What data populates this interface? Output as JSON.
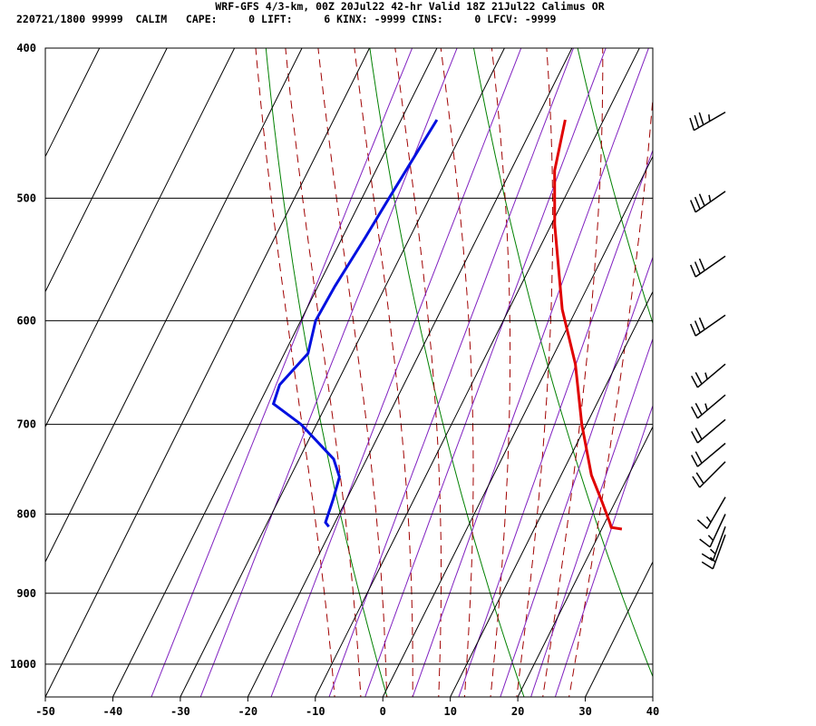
{
  "header": {
    "title": "WRF-GFS 4/3-km, 00Z 20Jul22 42-hr Valid 18Z 21Jul22 Calimus OR",
    "subtitle": "220721/1800 99999  CALIM   CAPE:     0 LIFT:     6 KINX: -9999 CINS:     0 LFCV: -9999"
  },
  "chart_data": {
    "type": "line",
    "title": "WRF-GFS 4/3-km, 00Z 20Jul22 42-hr Valid 18Z 21Jul22 Calimus OR",
    "xlabel": "",
    "ylabel": "",
    "xlim": [
      -50,
      40
    ],
    "ylim": [
      1050,
      400
    ],
    "y_scale": "log-pressure",
    "skew": "skew-T",
    "grid": true,
    "x_ticks": [
      "-50",
      "-40",
      "-30",
      "-20",
      "-10",
      "0",
      "10",
      "20",
      "30",
      "40"
    ],
    "y_ticks": [
      "400",
      "500",
      "600",
      "700",
      "800",
      "900",
      "1000"
    ],
    "x_tick_values": [
      -50,
      -40,
      -30,
      -20,
      -10,
      0,
      10,
      20,
      30,
      40
    ],
    "y_tick_values": [
      400,
      500,
      600,
      700,
      800,
      900,
      1000
    ],
    "colors": {
      "temperature": "#e00000",
      "dewpoint": "#0010e0",
      "dry_adiabat": "#008000",
      "moist_adiabat": "#a00000",
      "mixing_ratio": "#8020c0",
      "grid": "#000000"
    },
    "series": [
      {
        "role": "temperature",
        "color": "#e00000",
        "points": [
          [
            -15.7,
            445
          ],
          [
            -13.5,
            480
          ],
          [
            -9.5,
            520
          ],
          [
            -2.1,
            590
          ],
          [
            3.9,
            640
          ],
          [
            9.3,
            700
          ],
          [
            14.5,
            755
          ],
          [
            18.1,
            786
          ],
          [
            20.7,
            810
          ],
          [
            21.3,
            816
          ],
          [
            23.0,
            818
          ]
        ]
      },
      {
        "role": "dewpoint",
        "color": "#0010e0",
        "points": [
          [
            -34.7,
            445
          ],
          [
            -36.0,
            500
          ],
          [
            -36.6,
            530
          ],
          [
            -37.5,
            570
          ],
          [
            -37.8,
            600
          ],
          [
            -36.5,
            630
          ],
          [
            -38.4,
            660
          ],
          [
            -37.9,
            679
          ],
          [
            -32.3,
            700
          ],
          [
            -24.9,
            737
          ],
          [
            -22.7,
            757
          ],
          [
            -22.0,
            782
          ],
          [
            -21.4,
            810
          ],
          [
            -20.6,
            815
          ]
        ]
      }
    ],
    "dry_adiabat_thetas_K": [
      270,
      290,
      310,
      330,
      350,
      370,
      390,
      410
    ],
    "moist_adiabat_thetaw_C": [
      -10,
      -6,
      -2,
      2,
      6,
      10,
      14,
      18,
      22,
      26
    ],
    "mixing_ratio_gkg": [
      0.2,
      0.4,
      1,
      2,
      3,
      5,
      8,
      12,
      16,
      20
    ],
    "wind_barbs": [
      {
        "pressure": 440,
        "direction_deg": 240,
        "speed_kt": 35
      },
      {
        "pressure": 495,
        "direction_deg": 235,
        "speed_kt": 35
      },
      {
        "pressure": 545,
        "direction_deg": 235,
        "speed_kt": 30
      },
      {
        "pressure": 595,
        "direction_deg": 235,
        "speed_kt": 30
      },
      {
        "pressure": 640,
        "direction_deg": 230,
        "speed_kt": 25
      },
      {
        "pressure": 670,
        "direction_deg": 230,
        "speed_kt": 25
      },
      {
        "pressure": 695,
        "direction_deg": 230,
        "speed_kt": 20
      },
      {
        "pressure": 720,
        "direction_deg": 230,
        "speed_kt": 20
      },
      {
        "pressure": 740,
        "direction_deg": 225,
        "speed_kt": 20
      },
      {
        "pressure": 780,
        "direction_deg": 210,
        "speed_kt": 15
      },
      {
        "pressure": 800,
        "direction_deg": 205,
        "speed_kt": 15
      },
      {
        "pressure": 815,
        "direction_deg": 200,
        "speed_kt": 15
      },
      {
        "pressure": 825,
        "direction_deg": 200,
        "speed_kt": 15
      }
    ]
  }
}
